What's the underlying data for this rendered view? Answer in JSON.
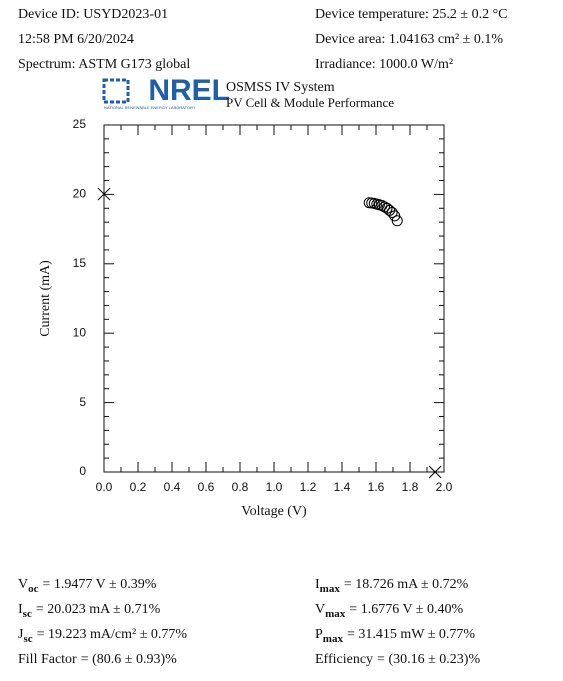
{
  "header": {
    "left": [
      "Device ID: USYD2023-01",
      "12:58 PM 6/20/2024",
      "Spectrum: ASTM G173 global"
    ],
    "right": [
      "Device temperature: 25.2 ± 0.2 °C",
      "Device area: 1.04163 cm² ± 0.1%",
      "Irradiance: 1000.0 W/m²"
    ],
    "logo": "NREL",
    "logo_caption": "NATIONAL RENEWABLE ENERGY LABORATORY",
    "system": "OSMSS IV System",
    "subtitle": "PV Cell & Module Performance"
  },
  "chart_data": {
    "type": "scatter",
    "x_label": "Voltage (V)",
    "y_label": "Current (mA)",
    "xlim": [
      0,
      2.0
    ],
    "xticks": [
      {
        "value": 0,
        "label": "0.0"
      },
      0.2,
      0.4,
      0.6,
      0.8,
      {
        "value": 1,
        "label": "1.0"
      },
      1.2,
      1.4,
      1.6,
      1.8,
      {
        "value": 2,
        "label": "2.0"
      }
    ],
    "ylim": [
      0,
      25
    ],
    "yticks": [
      0,
      5,
      10,
      15,
      20,
      25
    ],
    "color": "#000000",
    "series": [
      {
        "marker": "circle",
        "x": [
          1.56,
          1.575,
          1.59,
          1.605,
          1.62,
          1.635,
          1.65,
          1.665,
          1.68,
          1.695,
          1.71,
          1.725
        ],
        "values": [
          19.4,
          19.38,
          19.35,
          19.3,
          19.25,
          19.2,
          19.1,
          19.0,
          18.85,
          18.7,
          18.45,
          18.1
        ]
      },
      {
        "marker": "cross",
        "x": [
          0,
          1.9477
        ],
        "values": [
          20.023,
          0
        ]
      }
    ]
  },
  "results": {
    "left": [
      {
        "symbol": "V",
        "sub": "oc",
        "text": "= 1.9477 V ± 0.39%"
      },
      {
        "symbol": "I",
        "sub": "sc",
        "text": "= 20.023 mA ± 0.71%"
      },
      {
        "symbol": "J",
        "sub": "sc",
        "text": "= 19.223 mA/cm² ± 0.77%"
      },
      {
        "symbol": "Fill Factor",
        "text": "= (80.6 ± 0.93)%"
      }
    ],
    "right": [
      {
        "symbol": "I",
        "sub": "max",
        "text": "= 18.726 mA ± 0.72%"
      },
      {
        "symbol": "V",
        "sub": "max",
        "text": "= 1.6776 V ± 0.40%"
      },
      {
        "symbol": "P",
        "sub": "max",
        "text": "= 31.415 mW ± 0.77%"
      },
      {
        "symbol": "Efficiency",
        "text": "= (30.16 ± 0.23)%"
      }
    ]
  }
}
